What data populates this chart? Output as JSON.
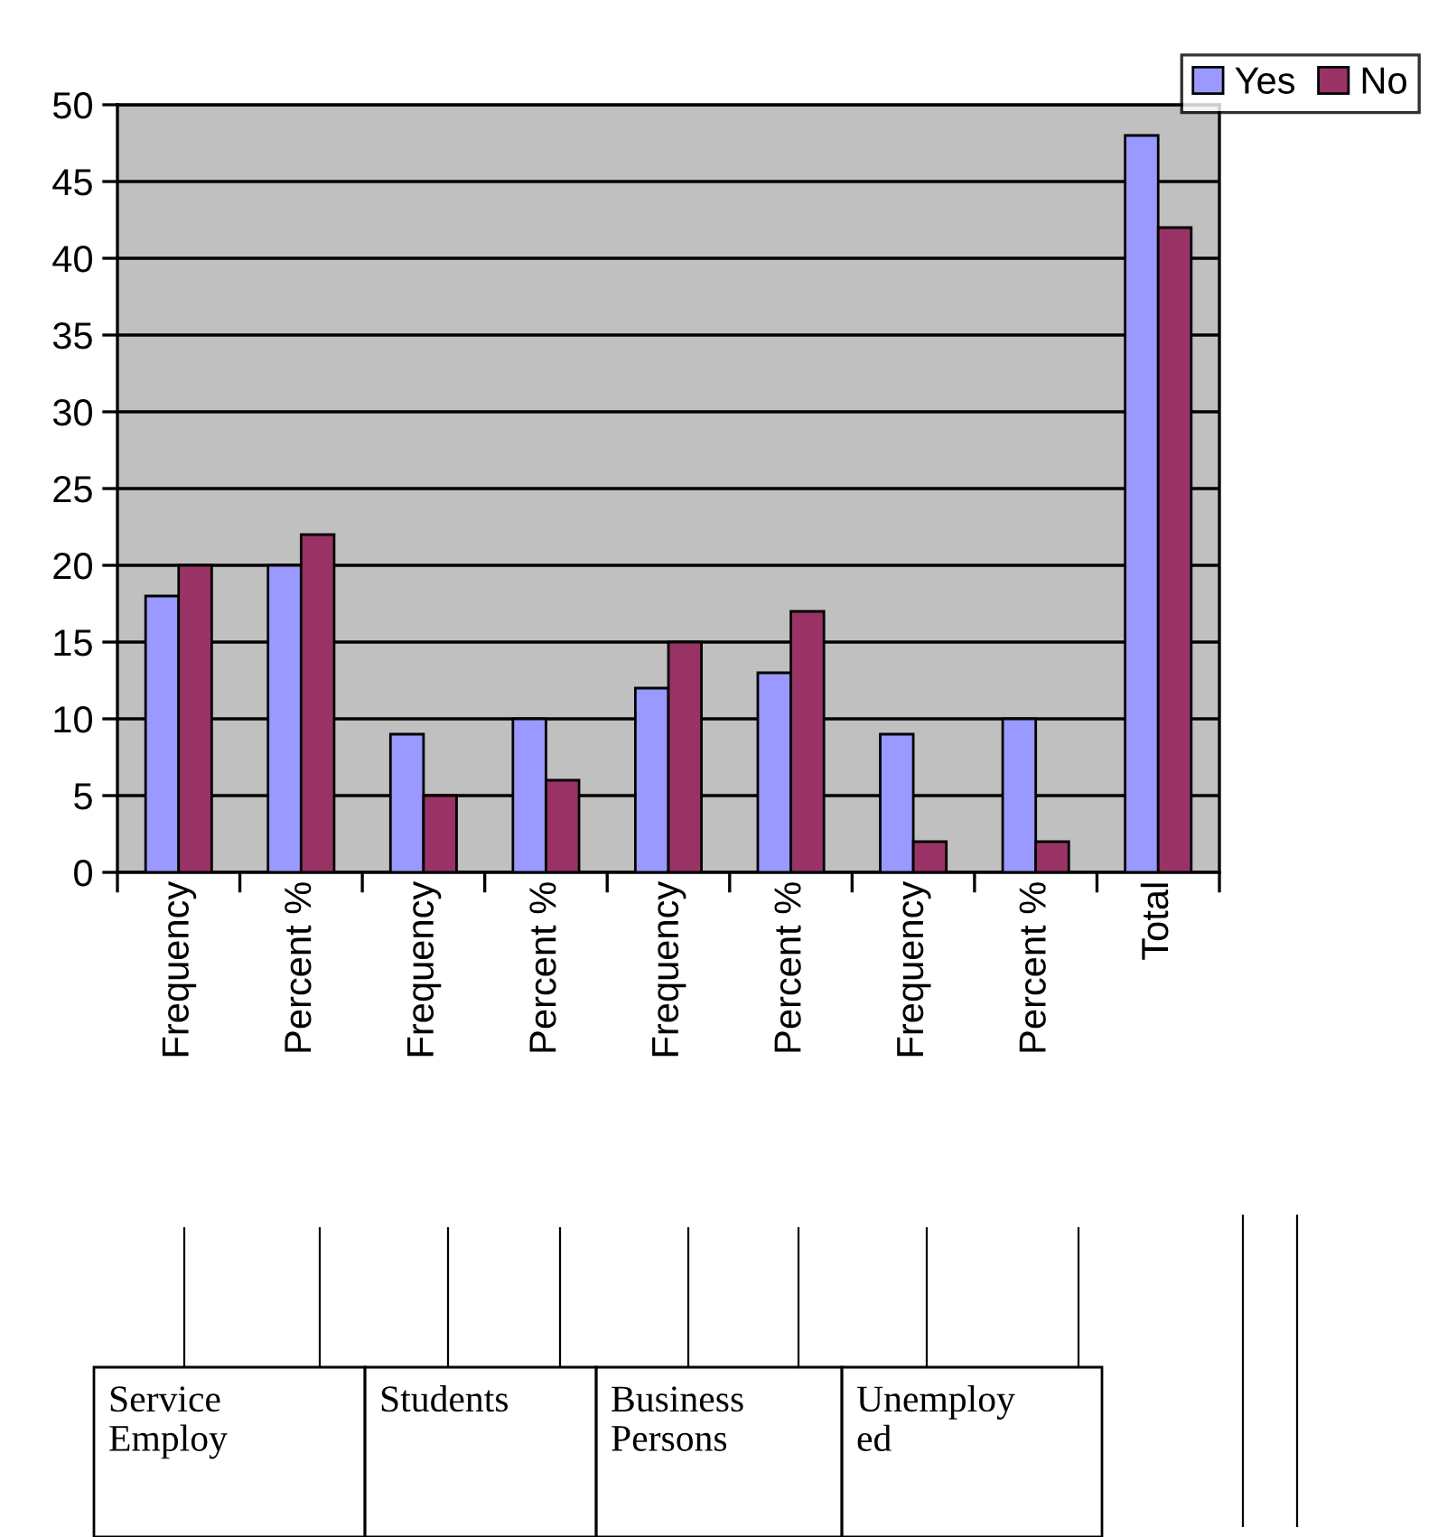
{
  "chart_data": {
    "type": "bar",
    "categories": [
      "Frequency",
      "Percent %",
      "Frequency",
      "Percent %",
      "Frequency",
      "Percent %",
      "Frequency",
      "Percent %",
      "Total"
    ],
    "series": [
      {
        "name": "Yes",
        "color": "#9999ff",
        "values": [
          18,
          20,
          9,
          10,
          12,
          13,
          9,
          10,
          48
        ]
      },
      {
        "name": "No",
        "color": "#993366",
        "values": [
          20,
          22,
          5,
          6,
          15,
          17,
          2,
          2,
          42
        ]
      }
    ],
    "ylim": [
      0,
      50
    ],
    "yticks": [
      0,
      5,
      10,
      15,
      20,
      25,
      30,
      35,
      40,
      45,
      50
    ],
    "grid": "y",
    "legend": "top right",
    "annotations": [
      "Service Employ",
      "Students",
      "Business Persons",
      "Unemploy ed"
    ]
  }
}
